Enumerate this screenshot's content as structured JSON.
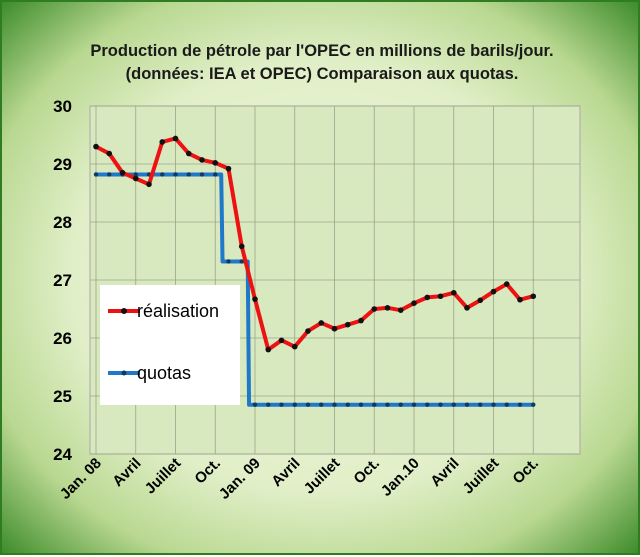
{
  "chart_data": {
    "type": "line",
    "title": "Production de pétrole par l'OPEC en millions de barils/jour.",
    "subtitle": "(données: IEA et OPEC) Comparaison aux quotas.",
    "ylim": [
      24,
      30
    ],
    "yticks": [
      24,
      25,
      26,
      27,
      28,
      29,
      30
    ],
    "grid": true,
    "legend_placement": "middle-left",
    "x_tick_labels": [
      "Jan. 08",
      "Avril",
      "Juillet",
      "Oct.",
      "Jan. 09",
      "Avril",
      "Juillet",
      "Oct.",
      "Jan.10",
      "Avril",
      "Juillet",
      "Oct."
    ],
    "x_tick_months": [
      0,
      3,
      6,
      9,
      12,
      15,
      18,
      21,
      24,
      27,
      30,
      33
    ],
    "months_count": 35,
    "series": [
      {
        "name": "réalisation",
        "color": "#ee1111",
        "marker_color": "#111111",
        "values": [
          29.3,
          29.18,
          28.85,
          28.75,
          28.65,
          29.38,
          29.44,
          29.18,
          29.07,
          29.02,
          28.92,
          27.58,
          26.67,
          25.8,
          25.96,
          25.85,
          26.12,
          26.26,
          26.16,
          26.23,
          26.3,
          26.5,
          26.52,
          26.48,
          26.6,
          26.7,
          26.72,
          26.78,
          26.52,
          26.65,
          26.8,
          26.93,
          26.66,
          26.72
        ]
      },
      {
        "name": "quotas",
        "color": "#1f78c8",
        "marker_color": "#123a60",
        "values": [
          28.82,
          28.82,
          28.82,
          28.82,
          28.82,
          28.82,
          28.82,
          28.82,
          28.82,
          28.82,
          27.32,
          27.32,
          24.85,
          24.85,
          24.85,
          24.85,
          24.85,
          24.85,
          24.85,
          24.85,
          24.85,
          24.85,
          24.85,
          24.85,
          24.85,
          24.85,
          24.85,
          24.85,
          24.85,
          24.85,
          24.85,
          24.85,
          24.85,
          24.85
        ]
      }
    ]
  }
}
